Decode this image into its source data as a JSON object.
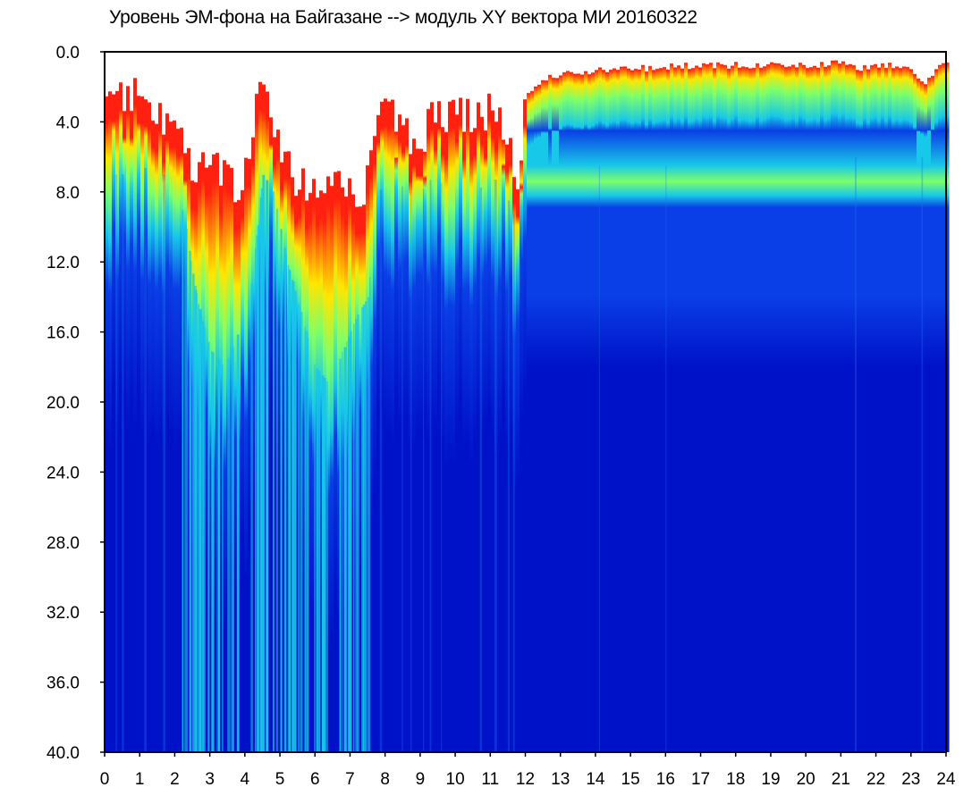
{
  "chart_data": {
    "type": "heatmap",
    "title": "Уровень ЭМ-фона на Байгазане   -->  модуль XY вектора МИ  20160322",
    "xlabel": "",
    "ylabel": "",
    "xlim": [
      0,
      24
    ],
    "ylim": [
      0,
      40
    ],
    "y_inverted": true,
    "x_ticks": [
      "0",
      "1",
      "2",
      "3",
      "4",
      "5",
      "6",
      "7",
      "8",
      "9",
      "10",
      "11",
      "12",
      "13",
      "14",
      "15",
      "16",
      "17",
      "18",
      "19",
      "20",
      "21",
      "22",
      "23",
      "24"
    ],
    "y_ticks": [
      "0.0",
      "4.0",
      "8.0",
      "12.0",
      "16.0",
      "20.0",
      "24.0",
      "28.0",
      "32.0",
      "36.0",
      "40.0"
    ],
    "grid": false,
    "legend": "none",
    "colormap": [
      "#0012c8",
      "#0a3ee6",
      "#18c8e8",
      "#7dff6a",
      "#ffe600",
      "#ff2010",
      "#ffffff"
    ],
    "profile": {
      "hours": [
        0,
        0.5,
        1,
        1.5,
        2,
        2.3,
        2.6,
        3,
        3.4,
        3.8,
        4.2,
        4.5,
        4.8,
        5.2,
        5.6,
        6,
        6.4,
        6.8,
        7.2,
        7.5,
        7.8,
        8.2,
        8.6,
        9,
        9.4,
        9.8,
        10.2,
        10.6,
        11,
        11.4,
        11.8,
        12,
        12.5,
        13,
        14,
        15,
        16,
        17,
        18,
        19,
        20,
        21,
        21.5,
        22,
        23,
        23.4,
        23.7,
        24
      ],
      "top_level": [
        3.0,
        2.5,
        2.8,
        3.5,
        4.5,
        6.0,
        7.0,
        6.5,
        7.0,
        8.0,
        5.0,
        2.0,
        3.5,
        6.5,
        7.5,
        8.5,
        8.0,
        7.5,
        8.0,
        7.5,
        4.5,
        3.0,
        5.0,
        5.5,
        3.0,
        3.5,
        3.5,
        4.0,
        3.0,
        4.5,
        7.0,
        2.5,
        1.5,
        1.3,
        1.1,
        1.0,
        0.9,
        0.8,
        0.8,
        0.8,
        0.8,
        0.7,
        1.0,
        0.8,
        0.8,
        2.0,
        1.2,
        0.6
      ],
      "intensity_depth": [
        9,
        9,
        8.5,
        9,
        9,
        12,
        16,
        19,
        20,
        18,
        15,
        9,
        10,
        14,
        17,
        20,
        21,
        19,
        17,
        16,
        10,
        9,
        10,
        10,
        9,
        10,
        9,
        10,
        9,
        10,
        12,
        8.5,
        8.5,
        8.5,
        8.5,
        8.5,
        8.5,
        8.0,
        8.0,
        8.0,
        8.0,
        8.0,
        8.0,
        8.0,
        8.0,
        8.0,
        8.0,
        8.0
      ]
    }
  }
}
